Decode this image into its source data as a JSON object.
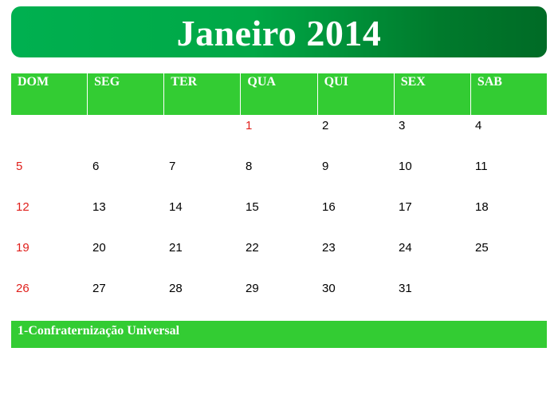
{
  "title": "Janeiro 2014",
  "weekdays": [
    "DOM",
    "SEG",
    "TER",
    "QUA",
    "QUI",
    "SEX",
    "SAB"
  ],
  "weeks": [
    [
      "",
      "",
      "",
      "1",
      "2",
      "3",
      "4"
    ],
    [
      "5",
      "6",
      "7",
      "8",
      "9",
      "10",
      "11"
    ],
    [
      "12",
      "13",
      "14",
      "15",
      "16",
      "17",
      "18"
    ],
    [
      "19",
      "20",
      "21",
      "22",
      "23",
      "24",
      "25"
    ],
    [
      "26",
      "27",
      "28",
      "29",
      "30",
      "31",
      ""
    ]
  ],
  "holiday_note": "1-Confraternização Universal",
  "colors": {
    "title_bar_start": "#00b050",
    "title_bar_end": "#006b26",
    "header_green": "#33cc33",
    "sunday_red": "#e0201c",
    "holiday_red": "#e0201c"
  }
}
